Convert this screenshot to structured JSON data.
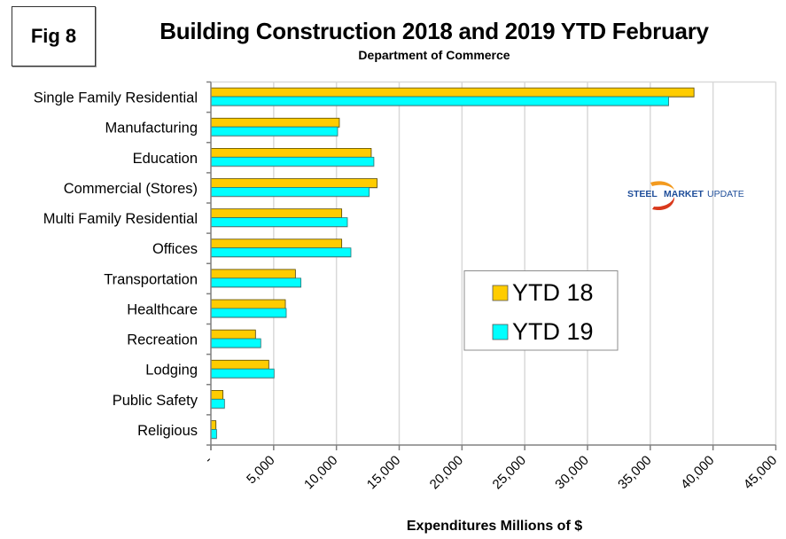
{
  "figure_label": "Fig 8",
  "logo": {
    "text_bold": "STEEL",
    "text_mid": "MARKET",
    "text_light": "UPDATE"
  },
  "colors": {
    "ytd18": "#FFCC00",
    "ytd19": "#00FFFF",
    "gridline": "#D9D9D9",
    "axis": "#808080",
    "logo_blue": "#1F4E9A",
    "logo_orange": "#E8701A"
  },
  "chart_data": {
    "type": "bar",
    "orientation": "horizontal",
    "title": "Building Construction 2018 and 2019 YTD February",
    "subtitle": "Department of Commerce",
    "xlabel": "Expenditures Millions of $",
    "ylabel": "",
    "xlim": [
      0,
      45000
    ],
    "x_ticks": [
      0,
      5000,
      10000,
      15000,
      20000,
      25000,
      30000,
      35000,
      40000,
      45000
    ],
    "x_tick_labels": [
      "-",
      "5,000",
      "10,000",
      "15,000",
      "20,000",
      "25,000",
      "30,000",
      "35,000",
      "40,000",
      "45,000"
    ],
    "grid": true,
    "legend_position": "center-right",
    "categories": [
      "Single Family Residential",
      "Manufacturing",
      "Education",
      "Commercial (Stores)",
      "Multi Family Residential",
      "Offices",
      "Transportation",
      "Healthcare",
      "Recreation",
      "Lodging",
      "Public Safety",
      "Religious"
    ],
    "series": [
      {
        "name": "YTD 18",
        "values": [
          38480,
          10230,
          12770,
          13240,
          10420,
          10420,
          6730,
          5930,
          3550,
          4610,
          960,
          400
        ]
      },
      {
        "name": "YTD 19",
        "values": [
          36460,
          10090,
          12980,
          12610,
          10870,
          11150,
          7170,
          6000,
          3970,
          5030,
          1080,
          450
        ]
      }
    ]
  }
}
